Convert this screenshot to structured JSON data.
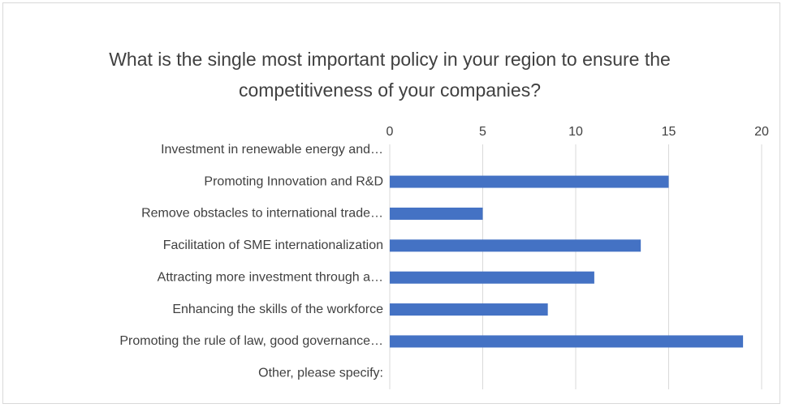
{
  "chart_data": {
    "type": "barh",
    "title": "What is the single most important policy in your region to ensure the competitiveness of your companies?",
    "categories": [
      "Investment in renewable energy and…",
      "Promoting Innovation and R&D",
      "Remove obstacles to international trade…",
      "Facilitation of SME internationalization",
      "Attracting more investment through a…",
      "Enhancing the skills of the workforce",
      "Promoting the rule of law, good governance…",
      "Other, please specify:"
    ],
    "values": [
      0,
      15,
      5,
      13.5,
      11,
      8.5,
      19,
      0
    ],
    "color": "#4472c4",
    "xlim": [
      0,
      20
    ],
    "xticks": [
      0,
      5,
      10,
      15,
      20
    ],
    "grid": true
  }
}
